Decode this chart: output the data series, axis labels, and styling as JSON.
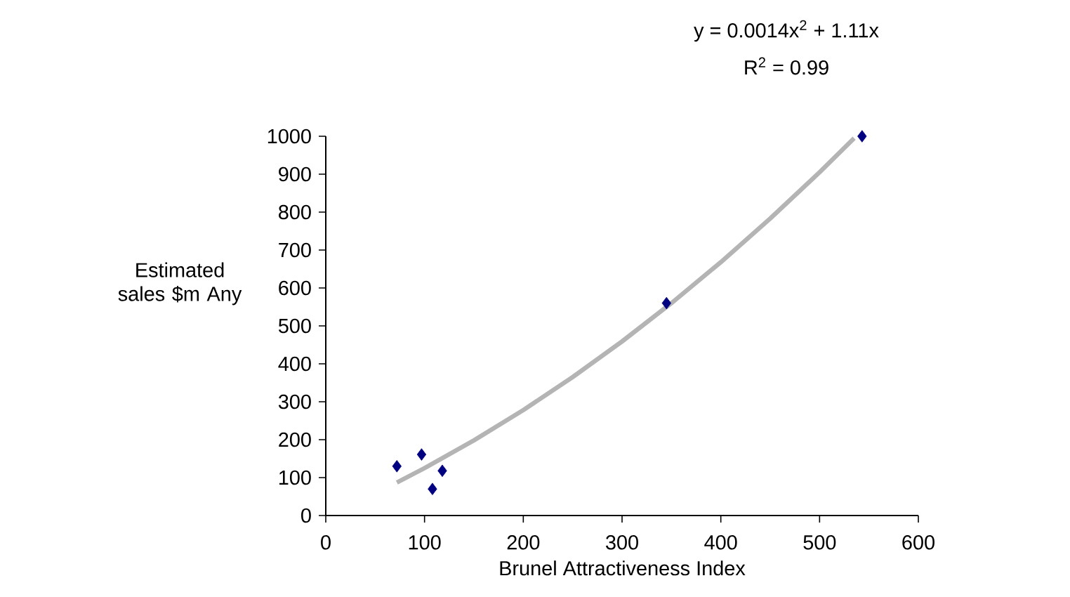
{
  "chart_data": {
    "type": "scatter",
    "annotations": [
      "y = 0.0014x$^{2}$ + 1.11x",
      "R$^{2}$ = 0.99"
    ],
    "xlabel": "Brunel Attractiveness Index",
    "ylabel": "Estimated sales $m Any",
    "series": [
      {
        "color": "#000080",
        "marker": "diamond",
        "x": [
          72,
          97,
          118,
          108,
          345,
          543
        ],
        "values": [
          130,
          161,
          118,
          70,
          560,
          1000
        ]
      },
      {
        "type": "line",
        "color": "#b4b4b4",
        "marker": "none",
        "x": [
          72,
          100,
          150,
          200,
          250,
          300,
          350,
          400,
          450,
          500,
          535
        ],
        "values": [
          87,
          125,
          198,
          278,
          365,
          459,
          560,
          668,
          783,
          905,
          995
        ]
      }
    ],
    "xlim": [
      0,
      600
    ],
    "xticks": [
      0,
      100,
      200,
      300,
      400,
      500,
      600
    ],
    "ylim": [
      0,
      1000
    ],
    "yticks": [
      0,
      100,
      200,
      300,
      400,
      500,
      600,
      700,
      800,
      900,
      1000
    ],
    "grid": false
  }
}
